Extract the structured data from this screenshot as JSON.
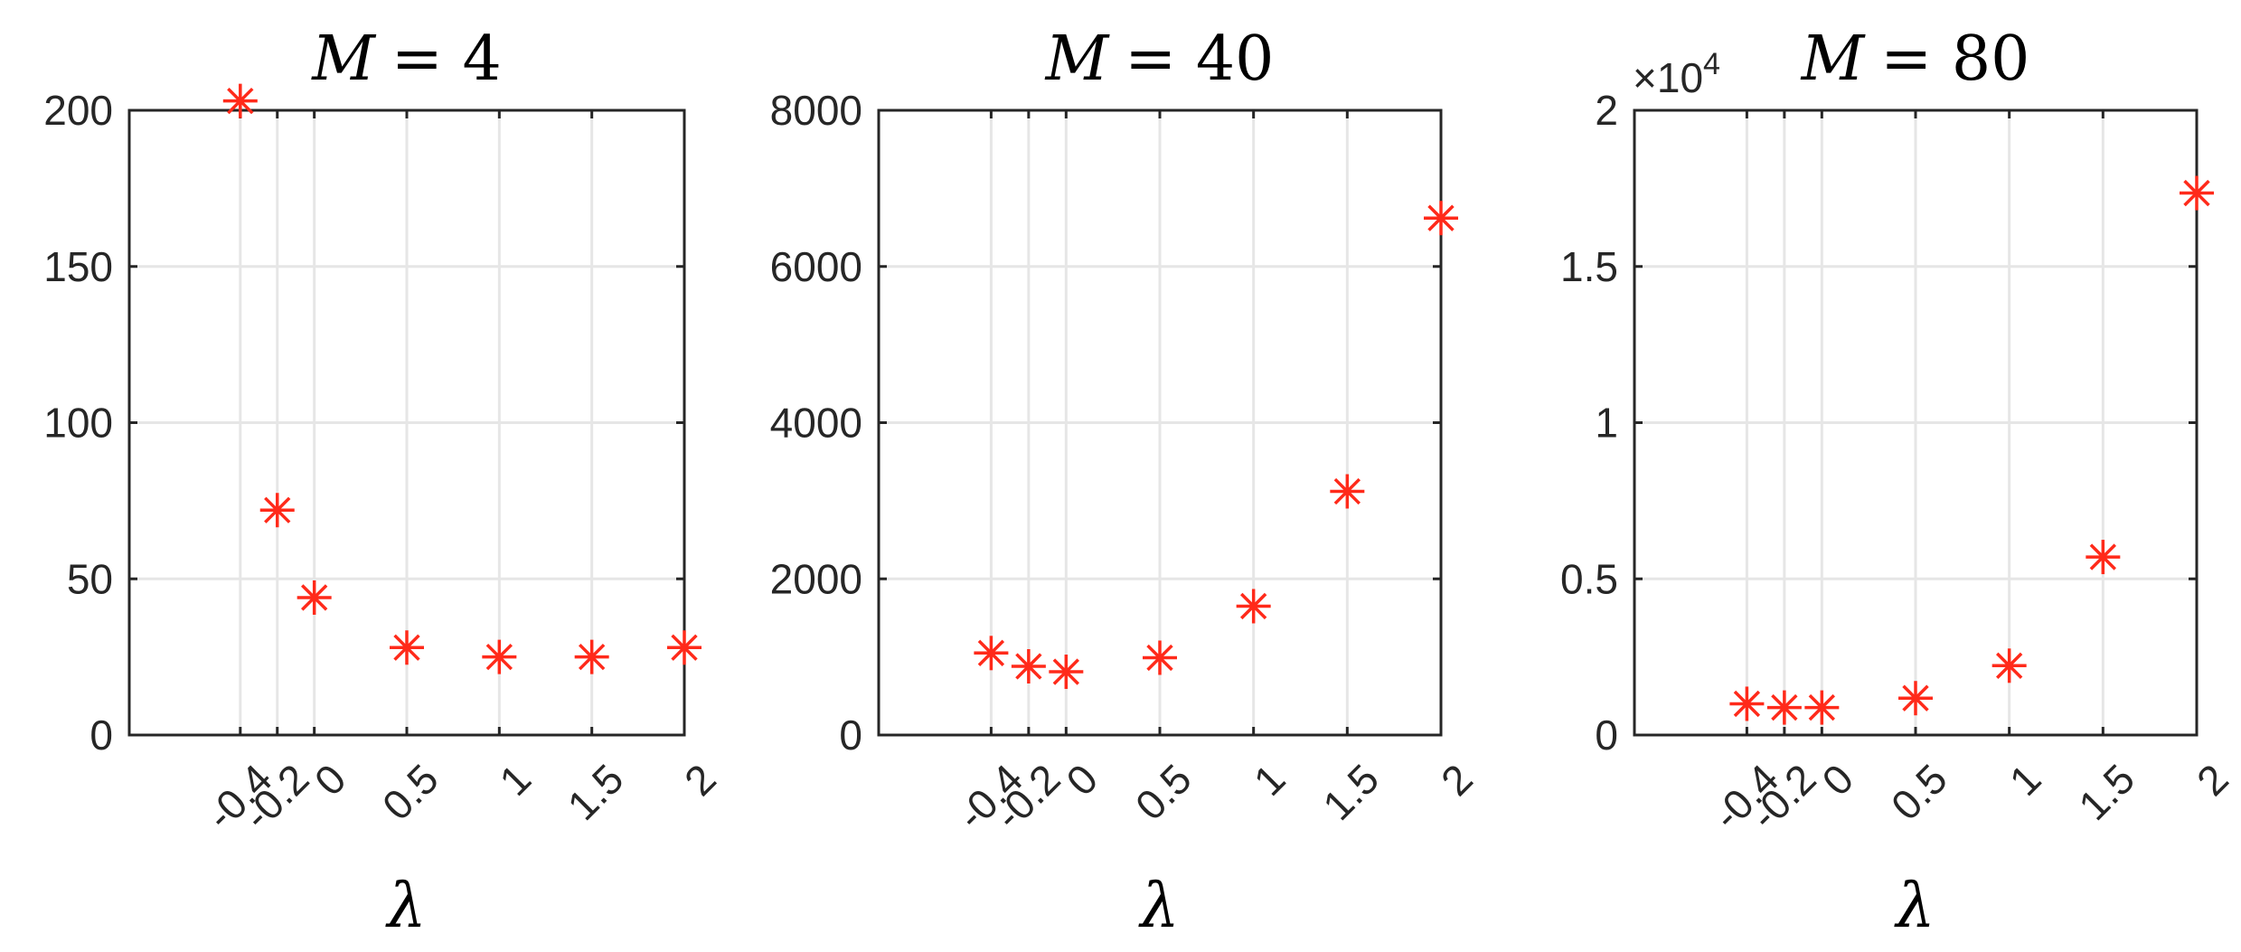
{
  "marker_color": "#ff2a1a",
  "chart_data": [
    {
      "type": "scatter",
      "title_var": "M",
      "title_eq": "= 4",
      "xlabel": "λ",
      "ylabel": "",
      "x": [
        -0.4,
        -0.2,
        0,
        0.5,
        1,
        1.5,
        2
      ],
      "y": [
        203,
        72,
        44,
        28,
        25,
        25,
        28
      ],
      "xlim": [
        -1,
        2
      ],
      "ylim": [
        0,
        200
      ],
      "xticks": [
        -0.4,
        -0.2,
        0,
        0.5,
        1,
        1.5,
        2
      ],
      "xtick_labels": [
        "-0.4",
        "-0.2",
        "0",
        "0.5",
        "1",
        "1.5",
        "2"
      ],
      "yticks": [
        0,
        50,
        100,
        150,
        200
      ],
      "ytick_labels": [
        "0",
        "50",
        "100",
        "150",
        "200"
      ],
      "y_exponent_label": "",
      "grid": true,
      "marker": "asterisk"
    },
    {
      "type": "scatter",
      "title_var": "M",
      "title_eq": "= 40",
      "xlabel": "λ",
      "ylabel": "",
      "x": [
        -0.4,
        -0.2,
        0,
        0.5,
        1,
        1.5,
        2
      ],
      "y": [
        1050,
        880,
        810,
        990,
        1650,
        3120,
        6620
      ],
      "xlim": [
        -1,
        2
      ],
      "ylim": [
        0,
        8000
      ],
      "xticks": [
        -0.4,
        -0.2,
        0,
        0.5,
        1,
        1.5,
        2
      ],
      "xtick_labels": [
        "-0.4",
        "-0.2",
        "0",
        "0.5",
        "1",
        "1.5",
        "2"
      ],
      "yticks": [
        0,
        2000,
        4000,
        6000,
        8000
      ],
      "ytick_labels": [
        "0",
        "2000",
        "4000",
        "6000",
        "8000"
      ],
      "y_exponent_label": "",
      "grid": true,
      "marker": "asterisk"
    },
    {
      "type": "scatter",
      "title_var": "M",
      "title_eq": "= 80",
      "xlabel": "λ",
      "ylabel": "",
      "x": [
        -0.4,
        -0.2,
        0,
        0.5,
        1,
        1.5,
        2
      ],
      "y": [
        1000,
        880,
        880,
        1180,
        2220,
        5700,
        17350
      ],
      "xlim": [
        -1,
        2
      ],
      "ylim": [
        0,
        20000
      ],
      "xticks": [
        -0.4,
        -0.2,
        0,
        0.5,
        1,
        1.5,
        2
      ],
      "xtick_labels": [
        "-0.4",
        "-0.2",
        "0",
        "0.5",
        "1",
        "1.5",
        "2"
      ],
      "yticks": [
        0,
        5000,
        10000,
        15000,
        20000
      ],
      "ytick_labels": [
        "0",
        "0.5",
        "1",
        "1.5",
        "2"
      ],
      "y_exponent_label": "×10",
      "y_exponent_power": "4",
      "grid": true,
      "marker": "asterisk"
    }
  ]
}
